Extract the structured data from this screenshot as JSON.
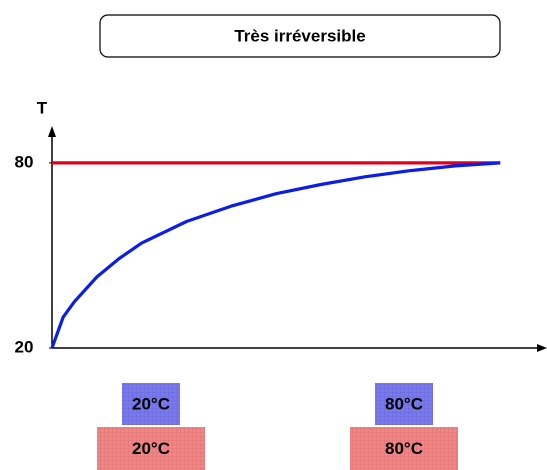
{
  "chart_data": {
    "type": "line",
    "title": "Très irréversible",
    "ylabel": "T",
    "series": [
      {
        "color": "#e0001b",
        "x": [
          0,
          10
        ],
        "values": [
          80,
          80
        ]
      },
      {
        "color": "#0a1ee6",
        "x": [
          0,
          0.25,
          0.5,
          1,
          1.5,
          2,
          3,
          4,
          5,
          6,
          7,
          8,
          9,
          10
        ],
        "values": [
          20,
          30,
          35,
          43,
          49,
          54,
          61,
          66,
          70,
          73,
          75.5,
          77.5,
          79,
          80
        ]
      }
    ],
    "xlim": [
      0,
      11
    ],
    "ylim": [
      20,
      90
    ],
    "yticks": [
      20,
      80
    ]
  },
  "blocks": [
    {
      "top": "20°C",
      "bottom": "20°C"
    },
    {
      "top": "80°C",
      "bottom": "80°C"
    }
  ]
}
